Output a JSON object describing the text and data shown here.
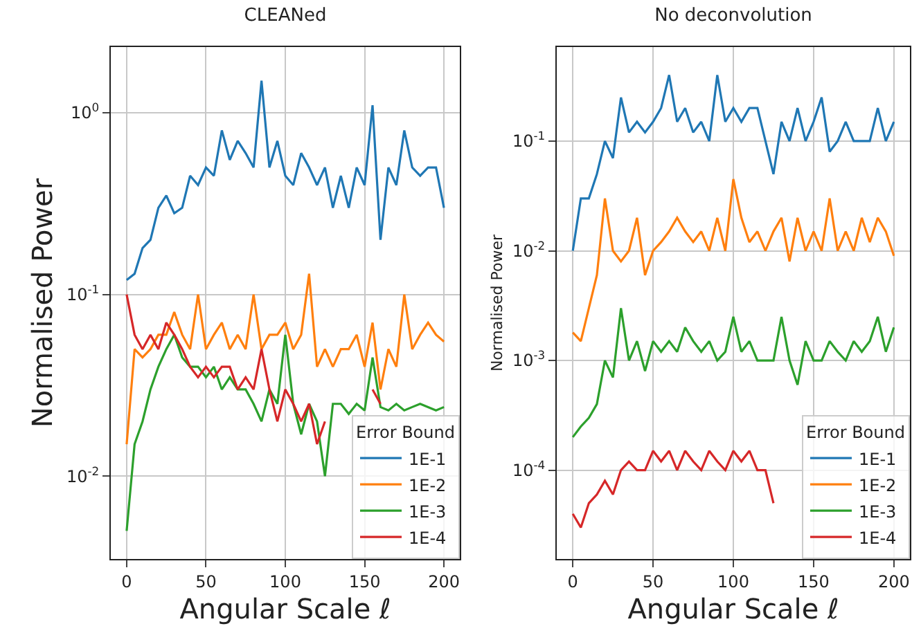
{
  "chart_data": [
    {
      "type": "line",
      "title": "CLEANed",
      "xlabel": "Angular Scale ℓ",
      "ylabel": "Normalised Power",
      "legend_title": "Error Bound",
      "legend": "bottom right",
      "grid": true,
      "log": "y",
      "xlim": [
        -10,
        210
      ],
      "xticks": [
        0,
        50,
        100,
        150,
        200
      ],
      "ylim": [
        0.0035,
        2.3
      ],
      "yticks": [
        {
          "value": 1,
          "label": "10$^{0}$"
        },
        {
          "value": 0.1,
          "label": "10$^{-1}$"
        },
        {
          "value": 0.01,
          "label": "10$^{-2}$"
        }
      ],
      "x": [
        0,
        5,
        10,
        15,
        20,
        25,
        30,
        35,
        40,
        45,
        50,
        55,
        60,
        65,
        70,
        75,
        80,
        85,
        90,
        95,
        100,
        105,
        110,
        115,
        120,
        125,
        130,
        135,
        140,
        145,
        150,
        155,
        160,
        165,
        170,
        175,
        180,
        185,
        190,
        195,
        200
      ],
      "series": [
        {
          "name": "1E-1",
          "color": "#1f77b4",
          "values": [
            0.12,
            0.13,
            0.18,
            0.2,
            0.3,
            0.35,
            0.28,
            0.3,
            0.45,
            0.4,
            0.5,
            0.45,
            0.8,
            0.55,
            0.7,
            0.6,
            0.5,
            1.5,
            0.5,
            0.7,
            0.45,
            0.4,
            0.6,
            0.5,
            0.4,
            0.5,
            0.3,
            0.45,
            0.3,
            0.5,
            0.4,
            1.1,
            0.2,
            0.5,
            0.4,
            0.8,
            0.5,
            0.45,
            0.5,
            0.5,
            0.3
          ]
        },
        {
          "name": "1E-2",
          "color": "#ff7f0e",
          "values": [
            0.015,
            0.05,
            0.045,
            0.05,
            0.06,
            0.06,
            0.08,
            0.06,
            0.05,
            0.1,
            0.05,
            0.06,
            0.07,
            0.05,
            0.06,
            0.05,
            0.1,
            0.05,
            0.06,
            0.06,
            0.07,
            0.05,
            0.06,
            0.13,
            0.04,
            0.05,
            0.04,
            0.05,
            0.05,
            0.06,
            0.04,
            0.07,
            0.03,
            0.05,
            0.04,
            0.1,
            0.05,
            0.06,
            0.07,
            0.06,
            0.055
          ]
        },
        {
          "name": "1E-3",
          "color": "#2ca02c",
          "values": [
            0.005,
            0.015,
            0.02,
            0.03,
            0.04,
            0.05,
            0.06,
            0.045,
            0.04,
            0.04,
            0.035,
            0.04,
            0.03,
            0.035,
            0.03,
            0.03,
            0.025,
            0.02,
            0.03,
            0.025,
            0.06,
            0.025,
            0.017,
            0.025,
            0.02,
            0.01,
            0.025,
            0.025,
            0.022,
            0.025,
            0.023,
            0.045,
            0.024,
            0.023,
            0.025,
            0.023,
            0.024,
            0.025,
            0.024,
            0.023,
            0.024
          ]
        },
        {
          "name": "1E-4",
          "color": "#d62728",
          "values": [
            0.1,
            0.06,
            0.05,
            0.06,
            0.05,
            0.07,
            0.06,
            0.05,
            0.04,
            0.035,
            0.04,
            0.035,
            0.04,
            0.04,
            0.03,
            0.035,
            0.03,
            0.05,
            0.03,
            0.02,
            0.03,
            0.025,
            0.02,
            0.025,
            0.015,
            0.02,
            null,
            null,
            null,
            null,
            null,
            0.03,
            0.025,
            null,
            null,
            null,
            null,
            null,
            null,
            null,
            null
          ]
        }
      ]
    },
    {
      "type": "line",
      "title": "No deconvolution",
      "xlabel": "Angular Scale ℓ",
      "ylabel": "Normalised Power",
      "legend_title": "Error Bound",
      "legend": "bottom right",
      "grid": true,
      "log": "y",
      "xlim": [
        -10,
        210
      ],
      "xticks": [
        0,
        50,
        100,
        150,
        200
      ],
      "ylim": [
        1.55e-05,
        0.72
      ],
      "yticks": [
        {
          "value": 0.1,
          "label": "10$^{-1}$"
        },
        {
          "value": 0.01,
          "label": "10$^{-2}$"
        },
        {
          "value": 0.001,
          "label": "10$^{-3}$"
        },
        {
          "value": 0.0001,
          "label": "10$^{-4}$"
        }
      ],
      "x": [
        0,
        5,
        10,
        15,
        20,
        25,
        30,
        35,
        40,
        45,
        50,
        55,
        60,
        65,
        70,
        75,
        80,
        85,
        90,
        95,
        100,
        105,
        110,
        115,
        120,
        125,
        130,
        135,
        140,
        145,
        150,
        155,
        160,
        165,
        170,
        175,
        180,
        185,
        190,
        195,
        200
      ],
      "series": [
        {
          "name": "1E-1",
          "color": "#1f77b4",
          "values": [
            0.01,
            0.03,
            0.03,
            0.05,
            0.1,
            0.07,
            0.25,
            0.12,
            0.15,
            0.12,
            0.15,
            0.2,
            0.4,
            0.15,
            0.2,
            0.12,
            0.15,
            0.1,
            0.4,
            0.15,
            0.2,
            0.15,
            0.2,
            0.2,
            0.1,
            0.05,
            0.15,
            0.1,
            0.2,
            0.1,
            0.15,
            0.25,
            0.08,
            0.1,
            0.15,
            0.1,
            0.1,
            0.1,
            0.2,
            0.1,
            0.15
          ]
        },
        {
          "name": "1E-2",
          "color": "#ff7f0e",
          "values": [
            0.0018,
            0.0015,
            0.003,
            0.006,
            0.03,
            0.01,
            0.008,
            0.01,
            0.02,
            0.006,
            0.01,
            0.012,
            0.015,
            0.02,
            0.015,
            0.012,
            0.015,
            0.01,
            0.02,
            0.01,
            0.045,
            0.02,
            0.012,
            0.015,
            0.01,
            0.015,
            0.02,
            0.008,
            0.02,
            0.01,
            0.015,
            0.01,
            0.03,
            0.01,
            0.015,
            0.01,
            0.02,
            0.012,
            0.02,
            0.015,
            0.009
          ]
        },
        {
          "name": "1E-3",
          "color": "#2ca02c",
          "values": [
            0.0002,
            0.00025,
            0.0003,
            0.0004,
            0.001,
            0.0007,
            0.003,
            0.001,
            0.0015,
            0.0008,
            0.0015,
            0.0012,
            0.0015,
            0.0012,
            0.002,
            0.0015,
            0.0012,
            0.0015,
            0.001,
            0.0012,
            0.0025,
            0.0012,
            0.0015,
            0.001,
            0.001,
            0.001,
            0.0025,
            0.001,
            0.0006,
            0.0015,
            0.001,
            0.001,
            0.0015,
            0.0012,
            0.001,
            0.0015,
            0.0012,
            0.0015,
            0.0025,
            0.0012,
            0.002
          ]
        },
        {
          "name": "1E-4",
          "color": "#d62728",
          "values": [
            4e-05,
            3e-05,
            5e-05,
            6e-05,
            8e-05,
            6e-05,
            0.0001,
            0.00012,
            0.0001,
            0.0001,
            0.00015,
            0.00012,
            0.00015,
            0.0001,
            0.00015,
            0.00012,
            0.0001,
            0.00015,
            0.00012,
            0.0001,
            0.00015,
            0.00012,
            0.00015,
            0.0001,
            0.0001,
            5e-05,
            null,
            null,
            null,
            null,
            null,
            null,
            null,
            null,
            null,
            null,
            null,
            null,
            null,
            null,
            null
          ]
        }
      ]
    }
  ]
}
